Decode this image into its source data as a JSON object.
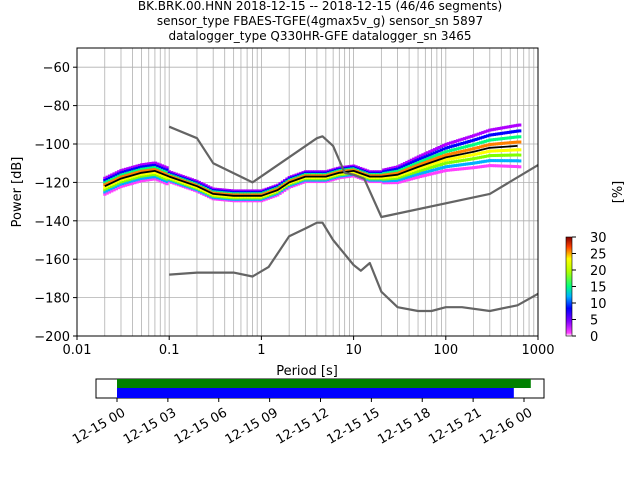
{
  "chart_data": {
    "type": "line",
    "title": [
      "BK.BRK.00.HNN   2018-12-15 -- 2018-12-15  (46/46 segments)",
      "sensor_type FBAES-TGFE(4gmax5v_g) sensor_sn 5897",
      "datalogger_type Q330HR-GFE datalogger_sn 3465"
    ],
    "xlabel": "Period [s]",
    "ylabel": "Power [dB]",
    "xscale": "log",
    "xlim": [
      0.01,
      1000
    ],
    "ylim": [
      -200,
      -50
    ],
    "x_ticks": [
      "0.01",
      "0.1",
      "1",
      "10",
      "100",
      "1000"
    ],
    "y_ticks": [
      "−60",
      "−80",
      "−100",
      "−120",
      "−140",
      "−160",
      "−180",
      "−200"
    ],
    "grid": true,
    "series": [
      {
        "color": "#000000",
        "points": [
          [
            0.02,
            -122
          ],
          [
            0.03,
            -118
          ],
          [
            0.05,
            -115
          ],
          [
            0.07,
            -114
          ],
          [
            0.1,
            -117
          ],
          [
            0.2,
            -122
          ],
          [
            0.3,
            -126
          ],
          [
            0.5,
            -127
          ],
          [
            1,
            -127
          ],
          [
            1.5,
            -124
          ],
          [
            2,
            -120
          ],
          [
            3,
            -117
          ],
          [
            5,
            -117
          ],
          [
            7,
            -115
          ],
          [
            10,
            -114
          ],
          [
            15,
            -117
          ],
          [
            20,
            -117
          ],
          [
            30,
            -116
          ],
          [
            50,
            -112
          ],
          [
            100,
            -107
          ],
          [
            200,
            -104
          ],
          [
            300,
            -102
          ],
          [
            600,
            -101
          ]
        ]
      },
      {
        "color": "#646464",
        "points": [
          [
            0.1,
            -91
          ],
          [
            0.2,
            -97
          ],
          [
            0.3,
            -110
          ],
          [
            0.8,
            -120
          ],
          [
            4,
            -97
          ],
          [
            4.6,
            -96
          ],
          [
            6,
            -101
          ],
          [
            8,
            -115
          ],
          [
            10,
            -116
          ],
          [
            13,
            -118
          ],
          [
            20,
            -138
          ],
          [
            300,
            -126
          ],
          [
            1000,
            -111
          ]
        ]
      },
      {
        "color": "#646464",
        "points": [
          [
            0.1,
            -168
          ],
          [
            0.2,
            -167
          ],
          [
            0.5,
            -167
          ],
          [
            0.8,
            -169
          ],
          [
            1.2,
            -164
          ],
          [
            2,
            -148
          ],
          [
            3,
            -144
          ],
          [
            4,
            -141
          ],
          [
            4.6,
            -141
          ],
          [
            6,
            -150
          ],
          [
            10,
            -163
          ],
          [
            12,
            -166
          ],
          [
            15,
            -162
          ],
          [
            20,
            -177
          ],
          [
            30,
            -185
          ],
          [
            50,
            -187
          ],
          [
            70,
            -187
          ],
          [
            100,
            -185
          ],
          [
            150,
            -185
          ],
          [
            300,
            -187
          ],
          [
            600,
            -184
          ],
          [
            1000,
            -178
          ]
        ]
      }
    ],
    "colorbar": {
      "label": "[%]",
      "ticks": [
        "0",
        "5",
        "10",
        "15",
        "20",
        "25",
        "30"
      ],
      "range": [
        0,
        30
      ]
    },
    "timeline": {
      "tick_labels": [
        "12-15 00",
        "12-15 03",
        "12-15 06",
        "12-15 09",
        "12-15 12",
        "12-15 15",
        "12-15 18",
        "12-15 21",
        "12-16 00"
      ],
      "bars": [
        {
          "color": "#008000",
          "start_hour": 0,
          "end_hour": 24.4
        },
        {
          "color": "#0000ff",
          "start_hour": 0,
          "end_hour": 23.4
        }
      ]
    }
  }
}
